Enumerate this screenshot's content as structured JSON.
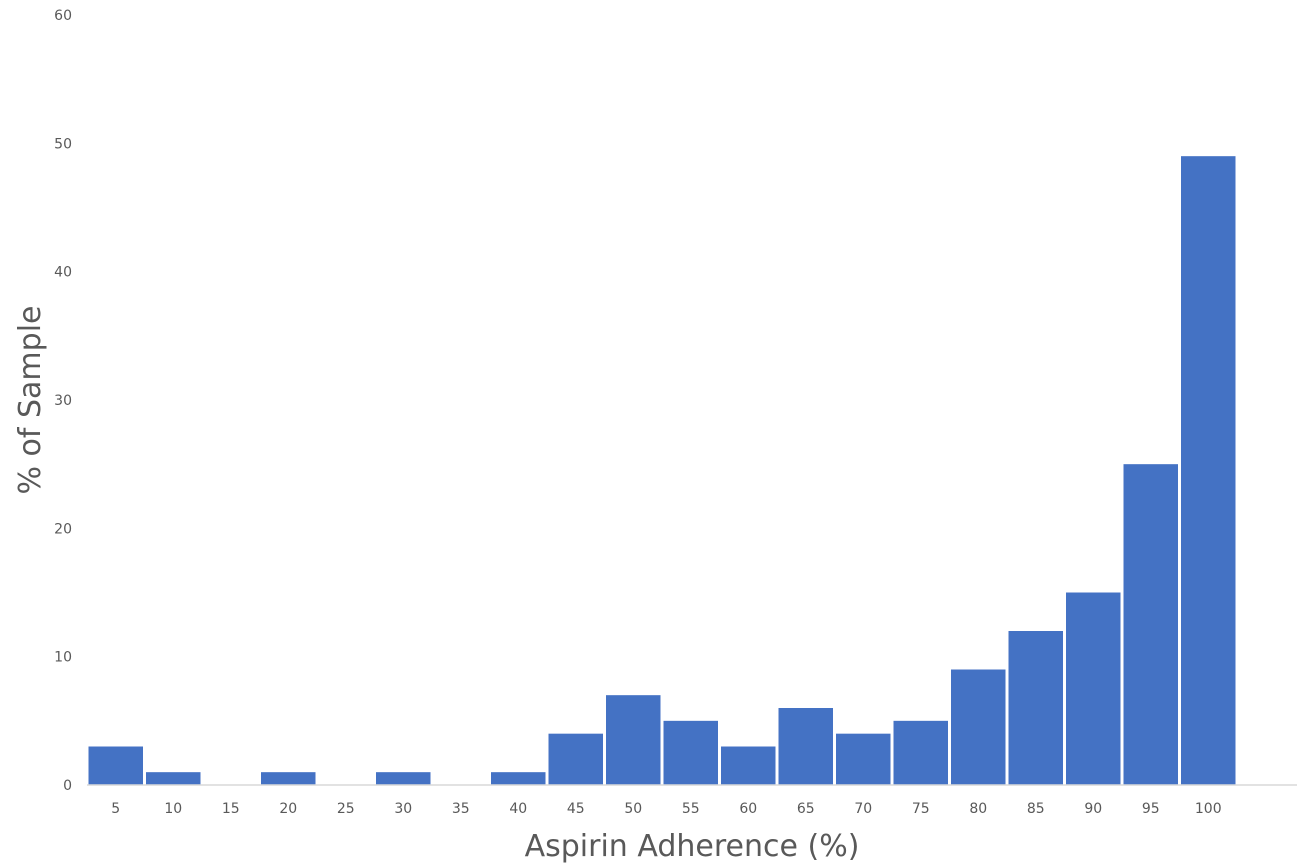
{
  "chart_data": {
    "type": "bar",
    "title": "",
    "xlabel": "Aspirin Adherence (%)",
    "ylabel": "% of Sample",
    "categories": [
      "5",
      "10",
      "15",
      "20",
      "25",
      "30",
      "35",
      "40",
      "45",
      "50",
      "55",
      "60",
      "65",
      "70",
      "75",
      "80",
      "85",
      "90",
      "95",
      "100"
    ],
    "values": [
      3,
      1,
      0,
      1,
      0,
      1,
      0,
      1,
      4,
      7,
      5,
      3,
      6,
      4,
      5,
      9,
      12,
      15,
      25,
      49
    ],
    "ylim": [
      0,
      60
    ],
    "yticks": [
      0,
      10,
      20,
      30,
      40,
      50,
      60
    ],
    "grid": false,
    "legend": "none",
    "bar_color": "#4472C4",
    "axis_color": "#D9D9D9"
  }
}
